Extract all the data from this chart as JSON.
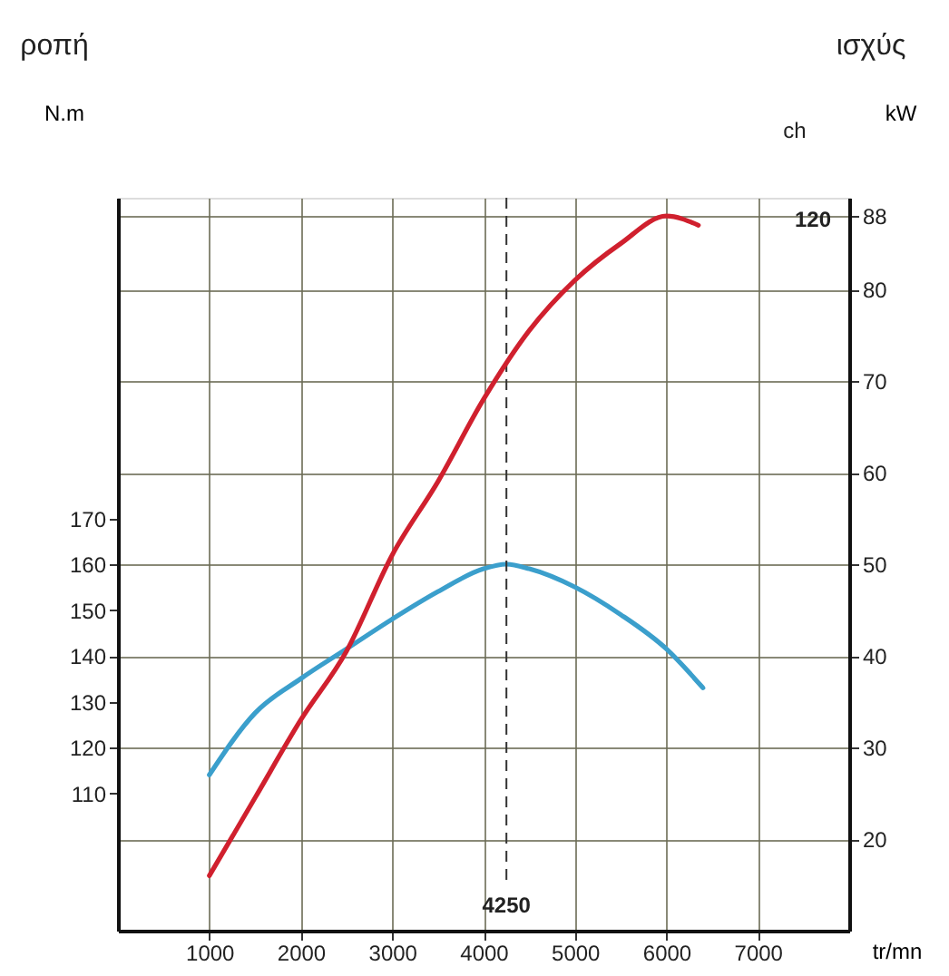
{
  "chart_data": {
    "type": "line",
    "annotations": [
      "ροπή",
      "ισχύς",
      "ch",
      "120"
    ],
    "xlabel": "tr/mn",
    "ylabel": "N.m",
    "y2label": "kW",
    "xlim": [
      0,
      8000
    ],
    "xticks": [
      1000,
      2000,
      3000,
      4000,
      5000,
      6000,
      7000
    ],
    "ylim": [
      80,
      240
    ],
    "yticks": [
      110,
      120,
      130,
      140,
      150,
      160,
      170
    ],
    "y2lim": [
      10,
      90
    ],
    "y2ticks": [
      20,
      30,
      40,
      50,
      60,
      70,
      80,
      88
    ],
    "grid": true,
    "ref_lines": [
      {
        "axis": "x",
        "value": 4250,
        "label": "4250",
        "line_style": "dashed"
      }
    ],
    "series": [
      {
        "color": "#3b9fcc",
        "x": [
          1000,
          1500,
          2000,
          2500,
          3000,
          3500,
          4000,
          4250,
          4500,
          5000,
          5500,
          6000,
          6400
        ],
        "values": [
          114,
          127.5,
          135,
          141.5,
          148,
          154,
          159,
          160,
          159,
          155,
          149,
          141.5,
          133
        ]
      },
      {
        "color": "#d0202e",
        "axis": "y2",
        "x": [
          1000,
          1500,
          2000,
          2500,
          3000,
          3500,
          4000,
          4500,
          5000,
          5500,
          6000,
          6350
        ],
        "values": [
          16,
          24.5,
          33,
          40.5,
          51,
          59,
          68,
          75.5,
          81,
          85,
          88,
          87
        ]
      }
    ]
  }
}
